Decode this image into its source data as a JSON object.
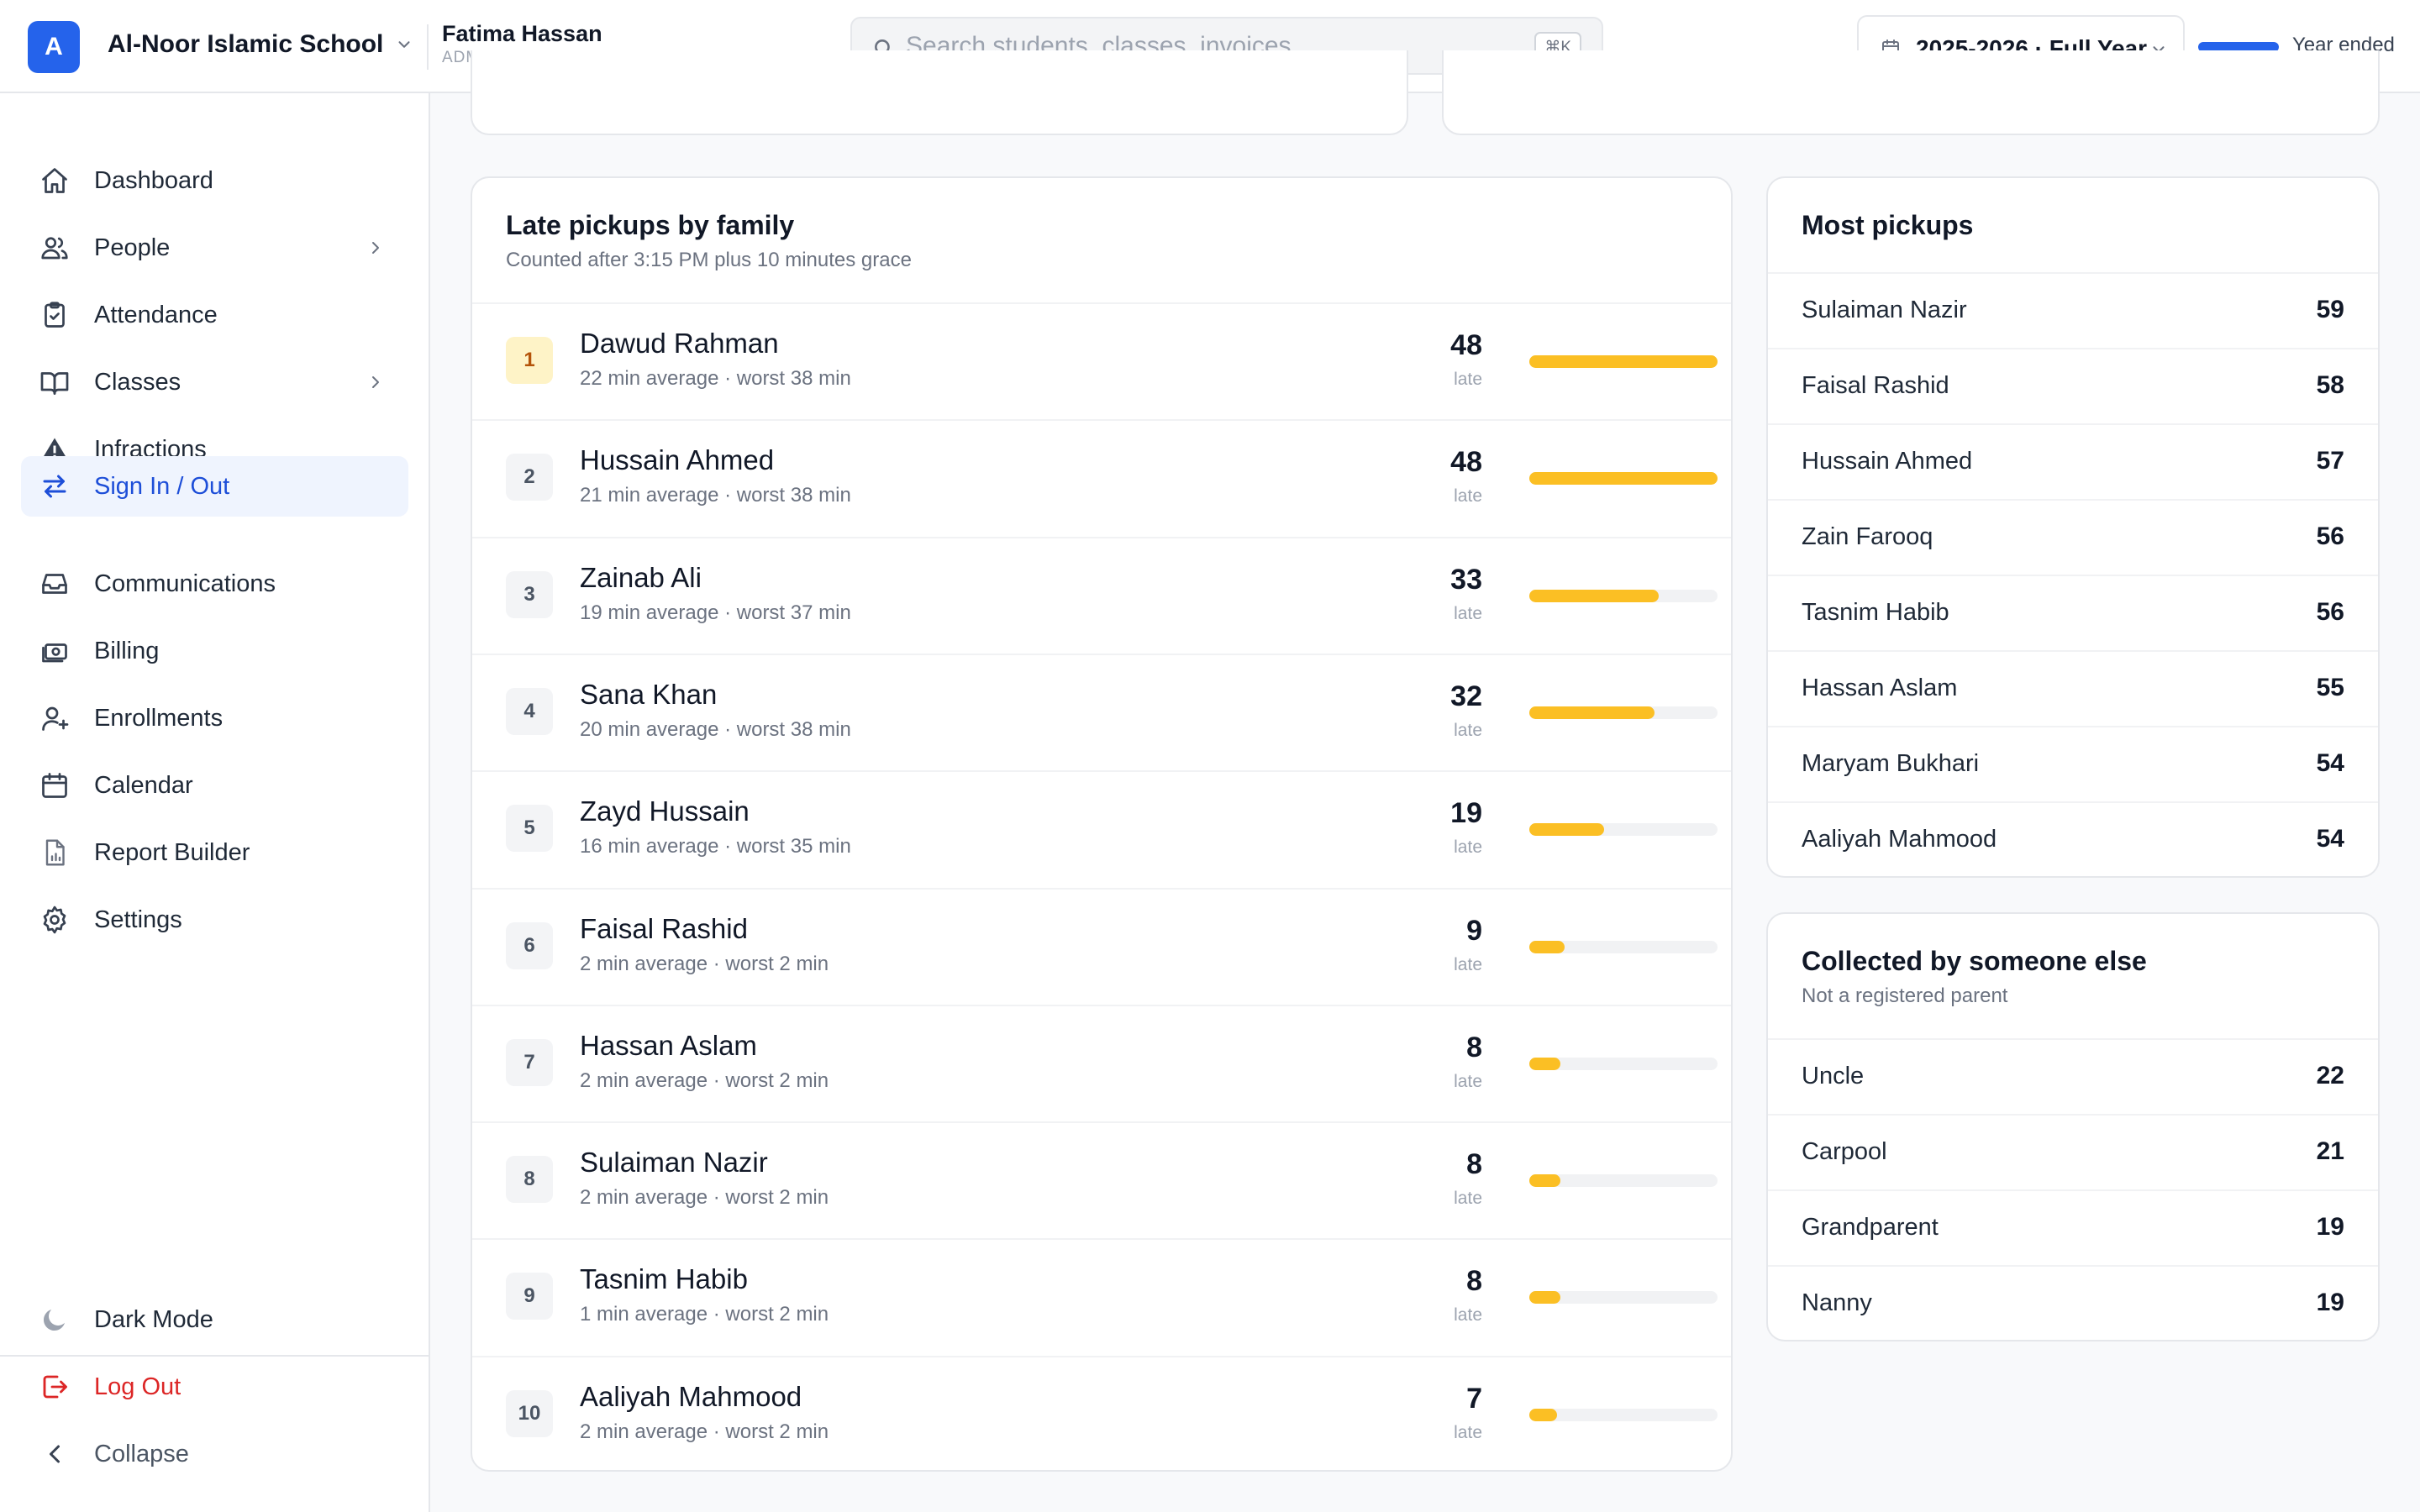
{
  "header": {
    "logo_letter": "A",
    "school_name": "Al-Noor Islamic School",
    "user_name": "Fatima Hassan",
    "user_role": "ADMIN",
    "search_placeholder": "Search students, classes, invoices...",
    "search_shortcut": "⌘K",
    "year_label": "2025-2026 · Full Year",
    "year_status": "Year ended",
    "year_progress_pct": 100
  },
  "sidebar": {
    "items": [
      {
        "label": "Dashboard",
        "icon": "home-icon"
      },
      {
        "label": "People",
        "icon": "users-icon",
        "has_submenu": true
      },
      {
        "label": "Attendance",
        "icon": "clipboard-check-icon"
      },
      {
        "label": "Classes",
        "icon": "book-open-icon",
        "has_submenu": true
      },
      {
        "label": "Infractions",
        "icon": "warning-icon"
      },
      {
        "label": "Sign In / Out",
        "icon": "arrows-swap-icon",
        "active": true
      },
      {
        "label": "Communications",
        "icon": "inbox-icon"
      },
      {
        "label": "Billing",
        "icon": "cash-icon"
      },
      {
        "label": "Enrollments",
        "icon": "user-plus-icon"
      },
      {
        "label": "Calendar",
        "icon": "calendar-icon"
      },
      {
        "label": "Report Builder",
        "icon": "report-icon"
      },
      {
        "label": "Settings",
        "icon": "gear-icon"
      }
    ],
    "bottom": {
      "dark_mode": "Dark Mode",
      "logout": "Log Out",
      "collapse": "Collapse"
    }
  },
  "colors": {
    "accent": "#2563eb",
    "active_bg": "#eff4fe",
    "bar": "#fbbf24",
    "logout": "#dc2626"
  },
  "late_pickups": {
    "title": "Late pickups by family",
    "subtitle": "Counted after 3:15 PM plus 10 minutes grace",
    "count_label": "late",
    "max_value": 48,
    "rows": [
      {
        "rank": "1",
        "name": "Dawud Rahman",
        "detail": "22 min average · worst 38 min",
        "count": 48
      },
      {
        "rank": "2",
        "name": "Hussain Ahmed",
        "detail": "21 min average · worst 38 min",
        "count": 48
      },
      {
        "rank": "3",
        "name": "Zainab Ali",
        "detail": "19 min average · worst 37 min",
        "count": 33
      },
      {
        "rank": "4",
        "name": "Sana Khan",
        "detail": "20 min average · worst 38 min",
        "count": 32
      },
      {
        "rank": "5",
        "name": "Zayd Hussain",
        "detail": "16 min average · worst 35 min",
        "count": 19
      },
      {
        "rank": "6",
        "name": "Faisal Rashid",
        "detail": "2 min average · worst 2 min",
        "count": 9
      },
      {
        "rank": "7",
        "name": "Hassan Aslam",
        "detail": "2 min average · worst 2 min",
        "count": 8
      },
      {
        "rank": "8",
        "name": "Sulaiman Nazir",
        "detail": "2 min average · worst 2 min",
        "count": 8
      },
      {
        "rank": "9",
        "name": "Tasnim Habib",
        "detail": "1 min average · worst 2 min",
        "count": 8
      },
      {
        "rank": "10",
        "name": "Aaliyah Mahmood",
        "detail": "2 min average · worst 2 min",
        "count": 7
      }
    ]
  },
  "most_pickups": {
    "title": "Most pickups",
    "rows": [
      {
        "name": "Sulaiman Nazir",
        "value": "59"
      },
      {
        "name": "Faisal Rashid",
        "value": "58"
      },
      {
        "name": "Hussain Ahmed",
        "value": "57"
      },
      {
        "name": "Zain Farooq",
        "value": "56"
      },
      {
        "name": "Tasnim Habib",
        "value": "56"
      },
      {
        "name": "Hassan Aslam",
        "value": "55"
      },
      {
        "name": "Maryam Bukhari",
        "value": "54"
      },
      {
        "name": "Aaliyah Mahmood",
        "value": "54"
      }
    ]
  },
  "collected_else": {
    "title": "Collected by someone else",
    "subtitle": "Not a registered parent",
    "rows": [
      {
        "name": "Uncle",
        "value": "22"
      },
      {
        "name": "Carpool",
        "value": "21"
      },
      {
        "name": "Grandparent",
        "value": "19"
      },
      {
        "name": "Nanny",
        "value": "19"
      }
    ]
  }
}
